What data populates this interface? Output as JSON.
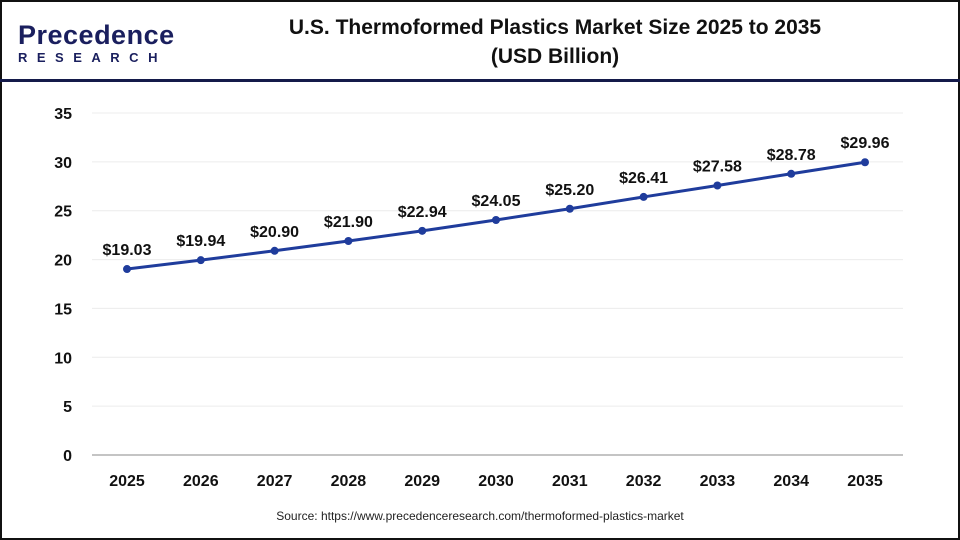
{
  "logo": {
    "text": "Precedence",
    "sub": "RESEARCH"
  },
  "title_line1": "U.S. Thermoformed Plastics Market Size 2025 to 2035",
  "title_line2": "(USD Billion)",
  "source": "Source: https://www.precedenceresearch.com/thermoformed-plastics-market",
  "chart_data": {
    "type": "line",
    "title": "U.S. Thermoformed Plastics Market Size 2025 to 2035 (USD Billion)",
    "categories": [
      "2025",
      "2026",
      "2027",
      "2028",
      "2029",
      "2030",
      "2031",
      "2032",
      "2033",
      "2034",
      "2035"
    ],
    "values": [
      19.03,
      19.94,
      20.9,
      21.9,
      22.94,
      24.05,
      25.2,
      26.41,
      27.58,
      28.78,
      29.96
    ],
    "data_labels": [
      "$19.03",
      "$19.94",
      "$20.90",
      "$21.90",
      "$22.94",
      "$24.05",
      "$25.20",
      "$26.41",
      "$27.58",
      "$28.78",
      "$29.96"
    ],
    "yticks": [
      0,
      5,
      10,
      15,
      20,
      25,
      30,
      35
    ],
    "ylim": [
      0,
      35
    ],
    "grid": true,
    "line_color": "#1f3c9c"
  }
}
